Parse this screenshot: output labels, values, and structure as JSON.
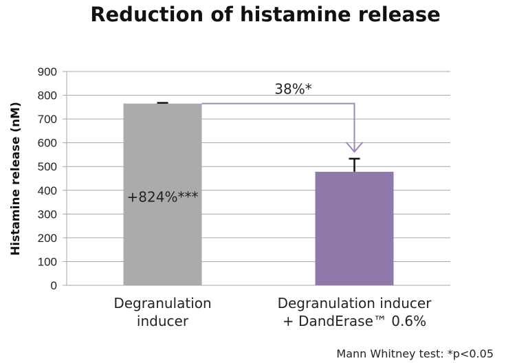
{
  "chart_data": {
    "type": "bar",
    "title": "Reduction of histamine release",
    "xlabel": "",
    "ylabel": "Histamine release (nM)",
    "ylim": [
      0,
      900
    ],
    "yticks": [
      0,
      100,
      200,
      300,
      400,
      500,
      600,
      700,
      800,
      900
    ],
    "grid": true,
    "categories": [
      [
        "Degranulation",
        "inducer"
      ],
      [
        "Degranulation inducer",
        "+ DandErase™ 0.6%"
      ]
    ],
    "values": [
      765,
      478
    ],
    "error": [
      3,
      55
    ],
    "bar_colors": [
      "#ababab",
      "#8e79aa"
    ],
    "bar_labels": [
      "+824%***",
      ""
    ],
    "comparison": {
      "from": 0,
      "to": 1,
      "label": "38%*",
      "arrow_color": "#9b88b8"
    },
    "footnote": "Mann Whitney test: *p<0.05"
  }
}
